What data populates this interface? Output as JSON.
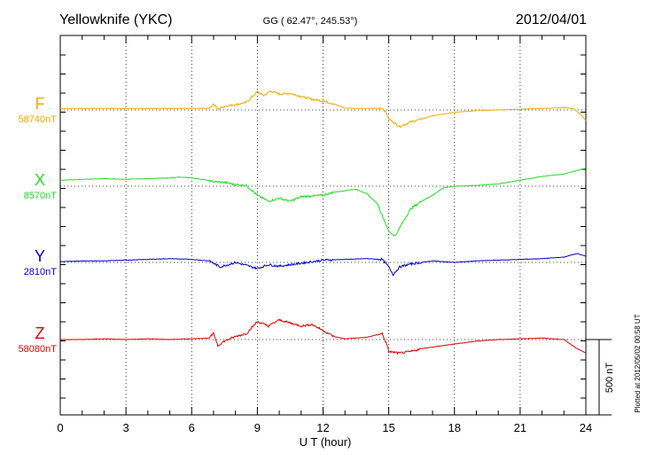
{
  "header": {
    "station": "Yellowknife (YKC)",
    "coords": "GG ( 62.47°, 245.53°)",
    "date": "2012/04/01"
  },
  "footer_note": "Plotted at 2012/05/02 00:58 UT",
  "chart_data": {
    "type": "line",
    "xlabel": "U T (hour)",
    "xlim": [
      0,
      24
    ],
    "x_ticks": [
      "0",
      "3",
      "6",
      "9",
      "12",
      "15",
      "18",
      "21",
      "24"
    ],
    "scale_bar": {
      "label": "500 nT",
      "value_nT": 500
    },
    "series": [
      {
        "name": "F",
        "baseline_label": "58740nT",
        "baseline_nT": 58740,
        "color": "#f5a800",
        "points": [
          [
            0,
            10
          ],
          [
            1,
            10
          ],
          [
            2,
            10
          ],
          [
            3,
            9
          ],
          [
            4,
            10
          ],
          [
            5,
            10
          ],
          [
            6,
            10
          ],
          [
            6.8,
            12
          ],
          [
            7,
            40
          ],
          [
            7.2,
            5
          ],
          [
            7.5,
            25
          ],
          [
            8,
            35
          ],
          [
            8.5,
            50
          ],
          [
            9,
            120
          ],
          [
            9.3,
            95
          ],
          [
            9.6,
            125
          ],
          [
            10,
            105
          ],
          [
            10.5,
            110
          ],
          [
            11,
            90
          ],
          [
            11.5,
            70
          ],
          [
            12,
            60
          ],
          [
            12.5,
            40
          ],
          [
            13,
            12
          ],
          [
            14,
            10
          ],
          [
            14.7,
            12
          ],
          [
            14.9,
            -20
          ],
          [
            15,
            -60
          ],
          [
            15.2,
            -80
          ],
          [
            15.5,
            -110
          ],
          [
            16,
            -80
          ],
          [
            16.5,
            -60
          ],
          [
            17,
            -40
          ],
          [
            18,
            -15
          ],
          [
            19,
            -5
          ],
          [
            20,
            0
          ],
          [
            21,
            5
          ],
          [
            22,
            10
          ],
          [
            23,
            15
          ],
          [
            23.4,
            10
          ],
          [
            23.7,
            -20
          ],
          [
            24,
            -70
          ]
        ]
      },
      {
        "name": "X",
        "baseline_label": "8570nT",
        "baseline_nT": 8570,
        "color": "#22dd22",
        "points": [
          [
            0,
            40
          ],
          [
            1,
            45
          ],
          [
            2,
            50
          ],
          [
            3,
            45
          ],
          [
            4,
            50
          ],
          [
            5,
            55
          ],
          [
            5.5,
            60
          ],
          [
            6,
            55
          ],
          [
            6.5,
            45
          ],
          [
            7,
            30
          ],
          [
            7.5,
            25
          ],
          [
            8,
            10
          ],
          [
            8.5,
            5
          ],
          [
            9,
            -60
          ],
          [
            9.5,
            -100
          ],
          [
            10,
            -80
          ],
          [
            10.5,
            -100
          ],
          [
            11,
            -70
          ],
          [
            11.5,
            -65
          ],
          [
            12,
            -60
          ],
          [
            12.5,
            -40
          ],
          [
            13,
            -30
          ],
          [
            13.5,
            -20
          ],
          [
            14,
            -50
          ],
          [
            14.5,
            -120
          ],
          [
            15,
            -300
          ],
          [
            15.3,
            -330
          ],
          [
            15.6,
            -250
          ],
          [
            16,
            -150
          ],
          [
            16.5,
            -100
          ],
          [
            17,
            -60
          ],
          [
            17.5,
            -10
          ],
          [
            18,
            0
          ],
          [
            19,
            5
          ],
          [
            20,
            15
          ],
          [
            21,
            40
          ],
          [
            22,
            65
          ],
          [
            23,
            80
          ],
          [
            24,
            120
          ]
        ]
      },
      {
        "name": "Y",
        "baseline_label": "2810nT",
        "baseline_nT": 2810,
        "color": "#0000cc",
        "points": [
          [
            0,
            5
          ],
          [
            1,
            10
          ],
          [
            2,
            10
          ],
          [
            3,
            15
          ],
          [
            4,
            20
          ],
          [
            5,
            25
          ],
          [
            6,
            20
          ],
          [
            6.8,
            10
          ],
          [
            7.3,
            -30
          ],
          [
            8,
            0
          ],
          [
            8.5,
            -20
          ],
          [
            9,
            -40
          ],
          [
            9.5,
            -15
          ],
          [
            10,
            -25
          ],
          [
            11,
            -5
          ],
          [
            12,
            15
          ],
          [
            13,
            20
          ],
          [
            14,
            25
          ],
          [
            14.7,
            20
          ],
          [
            15,
            -30
          ],
          [
            15.2,
            -80
          ],
          [
            15.5,
            -30
          ],
          [
            16,
            -10
          ],
          [
            17,
            10
          ],
          [
            18,
            0
          ],
          [
            19,
            10
          ],
          [
            20,
            15
          ],
          [
            21,
            20
          ],
          [
            22,
            25
          ],
          [
            23,
            35
          ],
          [
            23.6,
            60
          ],
          [
            24,
            40
          ]
        ]
      },
      {
        "name": "Z",
        "baseline_label": "58080nT",
        "baseline_nT": 58080,
        "color": "#dd0000",
        "points": [
          [
            0,
            0
          ],
          [
            1,
            0
          ],
          [
            2,
            5
          ],
          [
            3,
            0
          ],
          [
            4,
            5
          ],
          [
            5,
            0
          ],
          [
            6,
            5
          ],
          [
            6.8,
            10
          ],
          [
            7,
            40
          ],
          [
            7.2,
            -40
          ],
          [
            7.5,
            -10
          ],
          [
            8,
            20
          ],
          [
            8.5,
            40
          ],
          [
            9,
            120
          ],
          [
            9.5,
            90
          ],
          [
            10,
            130
          ],
          [
            10.5,
            110
          ],
          [
            11,
            90
          ],
          [
            11.5,
            100
          ],
          [
            12,
            60
          ],
          [
            12.5,
            20
          ],
          [
            13,
            5
          ],
          [
            14,
            15
          ],
          [
            14.7,
            40
          ],
          [
            14.9,
            -30
          ],
          [
            15,
            -80
          ],
          [
            15.5,
            -90
          ],
          [
            16,
            -80
          ],
          [
            16.5,
            -60
          ],
          [
            17,
            -50
          ],
          [
            18,
            -30
          ],
          [
            19,
            -10
          ],
          [
            20,
            0
          ],
          [
            21,
            5
          ],
          [
            22,
            10
          ],
          [
            23,
            0
          ],
          [
            23.6,
            -60
          ],
          [
            24,
            -90
          ]
        ]
      }
    ]
  }
}
